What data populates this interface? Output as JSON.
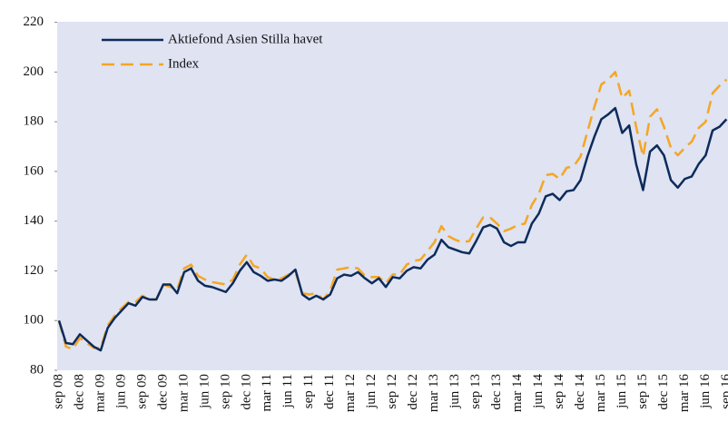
{
  "chart_data": {
    "type": "line",
    "categories": [
      "sep 08",
      null,
      null,
      "dec 08",
      null,
      null,
      "mar 09",
      null,
      null,
      "jun 09",
      null,
      null,
      "sep 09",
      null,
      null,
      "dec 09",
      null,
      null,
      "mar 10",
      null,
      null,
      "jun 10",
      null,
      null,
      "sep 10",
      null,
      null,
      "dec 10",
      null,
      null,
      "mar 11",
      null,
      null,
      "jun 11",
      null,
      null,
      "sep 11",
      null,
      null,
      "dec 11",
      null,
      null,
      "mar 12",
      null,
      null,
      "jun 12",
      null,
      null,
      "sep 12",
      null,
      null,
      "dec 12",
      null,
      null,
      "mar 13",
      null,
      null,
      "jun 13",
      null,
      null,
      "sep 13",
      null,
      null,
      "dec 13",
      null,
      null,
      "mar 14",
      null,
      null,
      "jun 14",
      null,
      null,
      "sep 14",
      null,
      null,
      "dec 14",
      null,
      null,
      "mar 15",
      null,
      null,
      "jun 15",
      null,
      null,
      "sep 15",
      null,
      null,
      "dec 15",
      null,
      null,
      "mar 16",
      null,
      null,
      "jun 16",
      null,
      null,
      "sep 16"
    ],
    "series": [
      {
        "name": "Aktiefond Asien Stilla havet",
        "color": "#0d2b5b",
        "dashed": false,
        "values": [
          100,
          91,
          90.5,
          94.5,
          92,
          89.5,
          88,
          97,
          101,
          104,
          107,
          106,
          109.5,
          108.5,
          108.5,
          114.5,
          114.5,
          111,
          119.5,
          121,
          116,
          114,
          113.5,
          112.5,
          111.5,
          115,
          120,
          123.5,
          119.5,
          118,
          116,
          116.5,
          116,
          118,
          120.5,
          110.5,
          108.5,
          110,
          108.5,
          110.5,
          117,
          118.5,
          118,
          119.5,
          117,
          115,
          117,
          113.5,
          117.5,
          117,
          120,
          121.5,
          121,
          124.5,
          126.5,
          132.5,
          129.5,
          128.5,
          127.5,
          127,
          132,
          137.5,
          138.5,
          137,
          131.5,
          130,
          131.5,
          131.5,
          139,
          143,
          150,
          151,
          148.5,
          152,
          152.5,
          156.5,
          166,
          174,
          181,
          183,
          185.5,
          175.5,
          178.5,
          163,
          152.5,
          168,
          170.5,
          166.5,
          156.5,
          153.5,
          157,
          158,
          163,
          166.5,
          176.5,
          178,
          181
        ]
      },
      {
        "name": "Index",
        "color": "#f5a623",
        "dashed": true,
        "values": [
          100,
          89.5,
          88.5,
          93,
          91,
          89,
          89,
          98,
          102,
          105,
          107.5,
          107.5,
          110,
          108.5,
          108.5,
          114.5,
          113.5,
          112.5,
          121,
          122.5,
          118,
          116.5,
          115.5,
          115,
          114.5,
          116.5,
          122.5,
          126.5,
          122,
          121,
          117.5,
          116.5,
          117,
          118.5,
          119.5,
          111,
          110.5,
          111,
          108.5,
          112,
          120.5,
          121,
          121.5,
          121,
          118,
          117.5,
          117.5,
          115,
          118.5,
          118.5,
          122.5,
          124,
          124.5,
          128,
          131.5,
          138,
          134,
          132.5,
          131.5,
          132,
          137,
          141.5,
          141.5,
          139,
          136,
          137,
          138.5,
          139,
          146.5,
          151,
          158.5,
          159,
          157,
          161.5,
          162,
          166,
          176,
          186,
          195,
          197,
          200,
          189.5,
          192.5,
          178,
          166,
          182,
          185,
          178,
          169.5,
          166.5,
          169.5,
          172,
          177.5,
          180,
          191.5,
          194.5,
          197
        ]
      }
    ],
    "ylim": [
      80,
      220
    ],
    "yticks": [
      80,
      100,
      120,
      140,
      160,
      180,
      200,
      220
    ],
    "legend": "upper left"
  }
}
